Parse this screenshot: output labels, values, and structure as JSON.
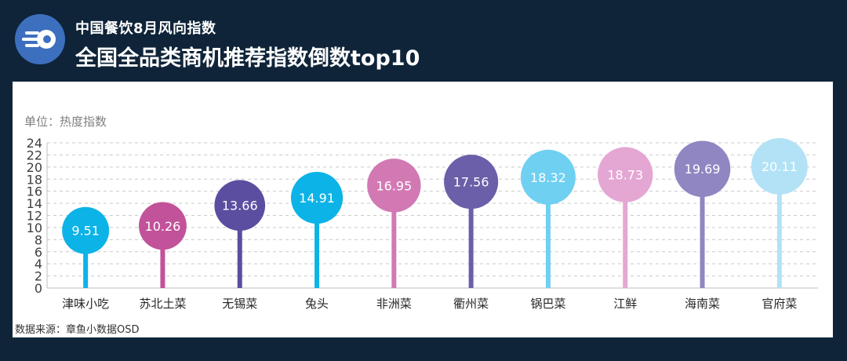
{
  "header": {
    "subtitle": "中国餐饮8月风向指数",
    "title": "全国全品类商机推荐指数倒数top10"
  },
  "unit_label": "单位：热度指数",
  "source_label": "数据来源：章鱼小数据OSD",
  "icons": {
    "logo": "brand-logo-icon"
  },
  "chart_data": {
    "type": "lollipop",
    "title": "全国全品类商机推荐指数倒数top10",
    "ylabel": "单位：热度指数",
    "xlabel": "",
    "ylim": [
      0,
      24
    ],
    "yticks": [
      0,
      2,
      4,
      6,
      8,
      10,
      12,
      14,
      16,
      18,
      20,
      22,
      24
    ],
    "grid": true,
    "categories": [
      "津味小吃",
      "苏北土菜",
      "无锡菜",
      "兔头",
      "非洲菜",
      "衢州菜",
      "锅巴菜",
      "江鲜",
      "海南菜",
      "官府菜"
    ],
    "values": [
      9.51,
      10.26,
      13.66,
      14.91,
      16.95,
      17.56,
      18.32,
      18.73,
      19.69,
      20.11
    ],
    "colors": [
      "#0cb3e6",
      "#c2529a",
      "#5b4ea1",
      "#0cb3e6",
      "#d279b4",
      "#6a5fa8",
      "#6fd0f2",
      "#e4a7d3",
      "#8f86c2",
      "#b3e2f6"
    ]
  }
}
